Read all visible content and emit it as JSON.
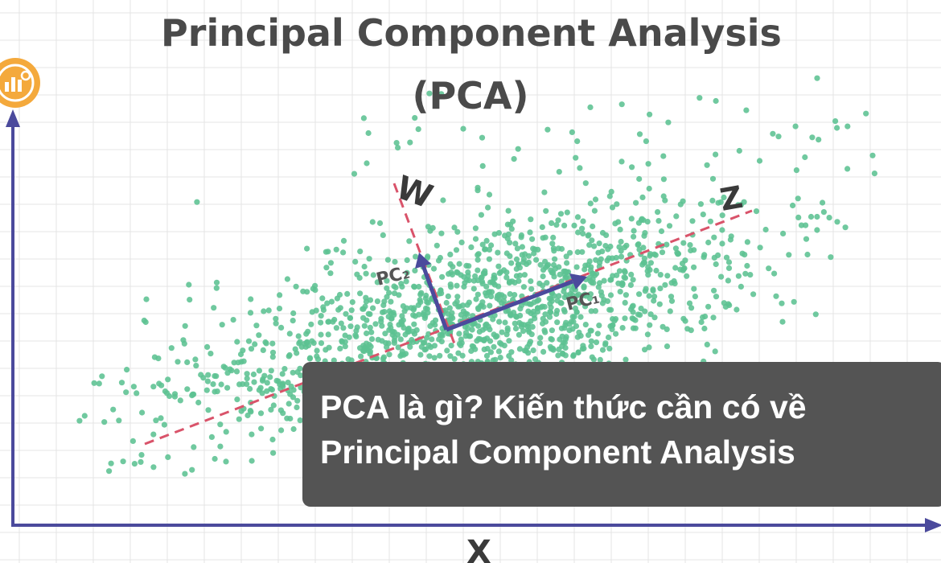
{
  "header": {
    "title_line1": "Principal Component Analysis",
    "title_line2": "(PCA)"
  },
  "diagram": {
    "axis_x_label": "X",
    "axis_w_label": "W",
    "axis_z_label": "Z",
    "pc1_label": "PC₁",
    "pc2_label": "PC₂",
    "point_color": "#5cc192",
    "axis_color": "#4b4a9c",
    "dashed_color": "#d9536a",
    "grid_color": "#e4e4e4"
  },
  "caption": {
    "line1": "PCA là gì? Kiến thức cần có về",
    "line2": "Principal Component Analysis"
  },
  "badge": {
    "icon": "chart-badge-icon",
    "color": "#f4a93c"
  }
}
